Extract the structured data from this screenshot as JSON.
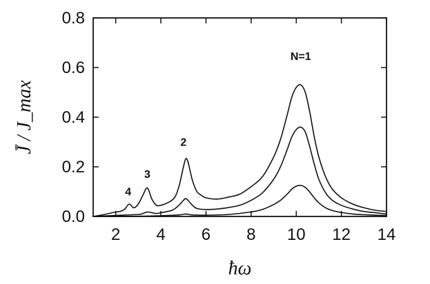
{
  "chart_data": {
    "type": "line",
    "title": "",
    "xlabel": "ħω",
    "ylabel": "J̄ / J_max",
    "xlim": [
      1,
      14
    ],
    "ylim": [
      0,
      0.8
    ],
    "grid": false,
    "x_ticks": [
      2,
      4,
      6,
      8,
      10,
      12,
      14
    ],
    "y_ticks": [
      0.0,
      0.2,
      0.4,
      0.6,
      0.8
    ],
    "x_tick_labels": [
      "2",
      "4",
      "6",
      "8",
      "10",
      "12",
      "14"
    ],
    "y_tick_labels": [
      "0.0",
      "0.2",
      "0.4",
      "0.6",
      "0.8"
    ],
    "annotations": [
      {
        "text": "N=1",
        "x": 10.2,
        "y": 0.63
      },
      {
        "text": "2",
        "x": 5.0,
        "y": 0.285
      },
      {
        "text": "3",
        "x": 3.4,
        "y": 0.155
      },
      {
        "text": "4",
        "x": 2.55,
        "y": 0.085
      }
    ],
    "series": [
      {
        "x": [
          1.0,
          1.5,
          2.0,
          2.2,
          2.4,
          2.6,
          2.8,
          3.0,
          3.2,
          3.4,
          3.6,
          3.8,
          4.0,
          4.3,
          4.6,
          4.8,
          5.0,
          5.1,
          5.2,
          5.4,
          5.6,
          5.8,
          6.0,
          6.5,
          7.0,
          7.5,
          8.0,
          8.5,
          9.0,
          9.3,
          9.6,
          9.8,
          10.0,
          10.2,
          10.4,
          10.6,
          10.8,
          11.0,
          11.3,
          11.6,
          12.0,
          12.5,
          13.0,
          13.5,
          14.0
        ],
        "values": [
          0.0,
          0.008,
          0.018,
          0.02,
          0.03,
          0.05,
          0.035,
          0.05,
          0.085,
          0.115,
          0.07,
          0.045,
          0.045,
          0.055,
          0.075,
          0.12,
          0.2,
          0.232,
          0.22,
          0.145,
          0.1,
          0.085,
          0.075,
          0.07,
          0.078,
          0.09,
          0.12,
          0.16,
          0.24,
          0.31,
          0.41,
          0.48,
          0.52,
          0.53,
          0.5,
          0.42,
          0.32,
          0.24,
          0.16,
          0.11,
          0.075,
          0.05,
          0.035,
          0.025,
          0.02
        ]
      },
      {
        "x": [
          1.0,
          2.0,
          3.0,
          3.2,
          3.4,
          3.6,
          3.8,
          4.0,
          4.5,
          4.8,
          5.0,
          5.1,
          5.2,
          5.4,
          5.6,
          6.0,
          6.5,
          7.0,
          7.5,
          8.0,
          8.5,
          9.0,
          9.3,
          9.6,
          9.8,
          10.0,
          10.2,
          10.4,
          10.6,
          10.8,
          11.0,
          11.3,
          11.6,
          12.0,
          12.5,
          13.0,
          13.5,
          14.0
        ],
        "values": [
          0.0,
          0.004,
          0.008,
          0.012,
          0.018,
          0.015,
          0.012,
          0.015,
          0.025,
          0.045,
          0.065,
          0.072,
          0.065,
          0.045,
          0.032,
          0.028,
          0.03,
          0.036,
          0.045,
          0.065,
          0.095,
          0.15,
          0.2,
          0.27,
          0.32,
          0.35,
          0.36,
          0.34,
          0.28,
          0.21,
          0.15,
          0.095,
          0.065,
          0.045,
          0.03,
          0.02,
          0.015,
          0.01
        ]
      },
      {
        "x": [
          1.0,
          3.0,
          4.0,
          4.8,
          5.1,
          5.4,
          6.0,
          7.0,
          8.0,
          8.5,
          9.0,
          9.3,
          9.6,
          9.8,
          10.0,
          10.2,
          10.4,
          10.6,
          10.8,
          11.0,
          11.3,
          11.6,
          12.0,
          12.5,
          13.0,
          13.5,
          14.0
        ],
        "values": [
          0.0,
          0.001,
          0.003,
          0.006,
          0.01,
          0.006,
          0.005,
          0.008,
          0.018,
          0.028,
          0.048,
          0.065,
          0.09,
          0.11,
          0.122,
          0.125,
          0.117,
          0.098,
          0.075,
          0.055,
          0.035,
          0.024,
          0.016,
          0.01,
          0.007,
          0.005,
          0.004
        ]
      }
    ]
  }
}
